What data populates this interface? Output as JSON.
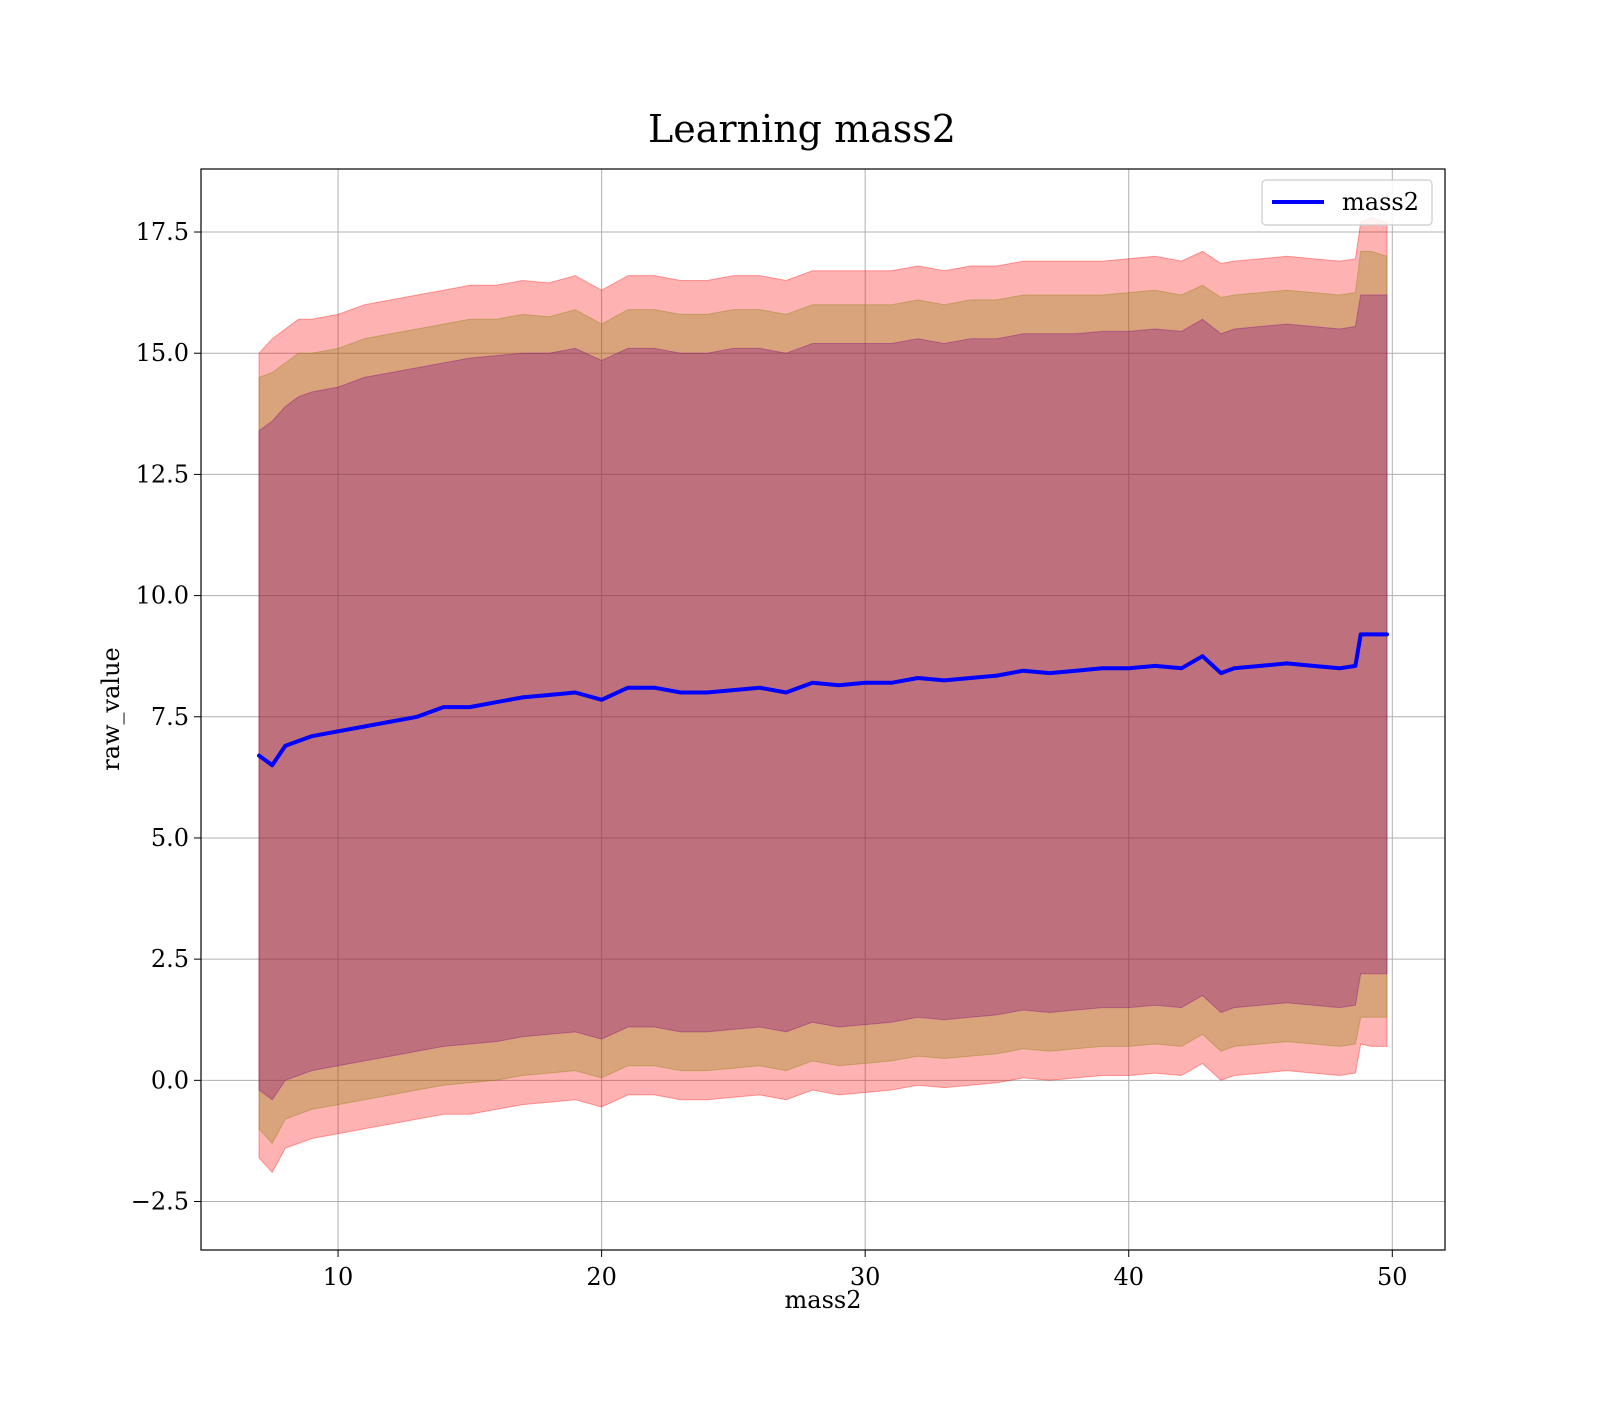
{
  "chart_data": {
    "type": "area",
    "title": "Learning mass2",
    "xlabel": "mass2",
    "ylabel": "raw_value",
    "xlim": [
      4.8,
      52.0
    ],
    "ylim": [
      -3.5,
      18.8
    ],
    "xticks": [
      10,
      20,
      30,
      40,
      50
    ],
    "xtick_labels": [
      "10",
      "20",
      "30",
      "40",
      "50"
    ],
    "yticks": [
      -2.5,
      0.0,
      2.5,
      5.0,
      7.5,
      10.0,
      12.5,
      15.0,
      17.5
    ],
    "ytick_labels": [
      "−2.5",
      "0.0",
      "2.5",
      "5.0",
      "7.5",
      "10.0",
      "12.5",
      "15.0",
      "17.5"
    ],
    "grid": true,
    "legend": {
      "placement": "top-right",
      "entries": [
        {
          "label": "mass2",
          "color": "#0000ff"
        }
      ]
    },
    "x": [
      7.0,
      7.5,
      8.0,
      8.5,
      9.0,
      10.0,
      11.0,
      12.0,
      13.0,
      14.0,
      15.0,
      16.0,
      17.0,
      18.0,
      19.0,
      20.0,
      21.0,
      22.0,
      23.0,
      24.0,
      25.0,
      26.0,
      27.0,
      28.0,
      29.0,
      30.0,
      31.0,
      32.0,
      33.0,
      34.0,
      35.0,
      36.0,
      37.0,
      38.0,
      39.0,
      40.0,
      41.0,
      42.0,
      42.8,
      43.5,
      44.0,
      45.0,
      46.0,
      47.0,
      48.0,
      48.6,
      48.8,
      49.2,
      49.8
    ],
    "series": [
      {
        "name": "mass2",
        "color": "#0000ff",
        "values": [
          6.7,
          6.5,
          6.9,
          7.0,
          7.1,
          7.2,
          7.3,
          7.4,
          7.5,
          7.7,
          7.7,
          7.8,
          7.9,
          7.95,
          8.0,
          7.85,
          8.1,
          8.1,
          8.0,
          8.0,
          8.05,
          8.1,
          8.0,
          8.2,
          8.15,
          8.2,
          8.2,
          8.3,
          8.25,
          8.3,
          8.35,
          8.45,
          8.4,
          8.45,
          8.5,
          8.5,
          8.55,
          8.5,
          8.75,
          8.4,
          8.5,
          8.55,
          8.6,
          8.55,
          8.5,
          8.55,
          9.2,
          9.2,
          9.2
        ]
      }
    ],
    "bands": [
      {
        "color": "#ff0000",
        "opacity": 0.3,
        "upper": [
          15.0,
          15.3,
          15.5,
          15.7,
          15.7,
          15.8,
          16.0,
          16.1,
          16.2,
          16.3,
          16.4,
          16.4,
          16.5,
          16.45,
          16.6,
          16.3,
          16.6,
          16.6,
          16.5,
          16.5,
          16.6,
          16.6,
          16.5,
          16.7,
          16.7,
          16.7,
          16.7,
          16.8,
          16.7,
          16.8,
          16.8,
          16.9,
          16.9,
          16.9,
          16.9,
          16.95,
          17.0,
          16.9,
          17.1,
          16.85,
          16.9,
          16.95,
          17.0,
          16.95,
          16.9,
          16.95,
          17.7,
          17.8,
          17.7
        ],
        "lower": [
          -1.6,
          -1.9,
          -1.4,
          -1.3,
          -1.2,
          -1.1,
          -1.0,
          -0.9,
          -0.8,
          -0.7,
          -0.7,
          -0.6,
          -0.5,
          -0.45,
          -0.4,
          -0.55,
          -0.3,
          -0.3,
          -0.4,
          -0.4,
          -0.35,
          -0.3,
          -0.4,
          -0.2,
          -0.3,
          -0.25,
          -0.2,
          -0.1,
          -0.15,
          -0.1,
          -0.05,
          0.05,
          0.0,
          0.05,
          0.1,
          0.1,
          0.15,
          0.1,
          0.35,
          0.0,
          0.1,
          0.15,
          0.2,
          0.15,
          0.1,
          0.15,
          0.75,
          0.7,
          0.7
        ]
      },
      {
        "color": "#808000",
        "opacity": 0.3,
        "upper": [
          14.5,
          14.6,
          14.8,
          15.0,
          15.0,
          15.1,
          15.3,
          15.4,
          15.5,
          15.6,
          15.7,
          15.7,
          15.8,
          15.75,
          15.9,
          15.6,
          15.9,
          15.9,
          15.8,
          15.8,
          15.9,
          15.9,
          15.8,
          16.0,
          16.0,
          16.0,
          16.0,
          16.1,
          16.0,
          16.1,
          16.1,
          16.2,
          16.2,
          16.2,
          16.2,
          16.25,
          16.3,
          16.2,
          16.4,
          16.15,
          16.2,
          16.25,
          16.3,
          16.25,
          16.2,
          16.25,
          17.1,
          17.1,
          17.0
        ],
        "lower": [
          -1.0,
          -1.3,
          -0.8,
          -0.7,
          -0.6,
          -0.5,
          -0.4,
          -0.3,
          -0.2,
          -0.1,
          -0.05,
          0.0,
          0.1,
          0.15,
          0.2,
          0.05,
          0.3,
          0.3,
          0.2,
          0.2,
          0.25,
          0.3,
          0.2,
          0.4,
          0.3,
          0.35,
          0.4,
          0.5,
          0.45,
          0.5,
          0.55,
          0.65,
          0.6,
          0.65,
          0.7,
          0.7,
          0.75,
          0.7,
          0.95,
          0.6,
          0.7,
          0.75,
          0.8,
          0.75,
          0.7,
          0.75,
          1.3,
          1.3,
          1.3
        ]
      },
      {
        "color": "#800080",
        "opacity": 0.3,
        "upper": [
          13.4,
          13.6,
          13.9,
          14.1,
          14.2,
          14.3,
          14.5,
          14.6,
          14.7,
          14.8,
          14.9,
          14.95,
          15.0,
          15.0,
          15.1,
          14.85,
          15.1,
          15.1,
          15.0,
          15.0,
          15.1,
          15.1,
          15.0,
          15.2,
          15.2,
          15.2,
          15.2,
          15.3,
          15.2,
          15.3,
          15.3,
          15.4,
          15.4,
          15.4,
          15.45,
          15.45,
          15.5,
          15.45,
          15.7,
          15.4,
          15.5,
          15.55,
          15.6,
          15.55,
          15.5,
          15.55,
          16.2,
          16.2,
          16.2
        ],
        "lower": [
          -0.2,
          -0.4,
          0.0,
          0.1,
          0.2,
          0.3,
          0.4,
          0.5,
          0.6,
          0.7,
          0.75,
          0.8,
          0.9,
          0.95,
          1.0,
          0.85,
          1.1,
          1.1,
          1.0,
          1.0,
          1.05,
          1.1,
          1.0,
          1.2,
          1.1,
          1.15,
          1.2,
          1.3,
          1.25,
          1.3,
          1.35,
          1.45,
          1.4,
          1.45,
          1.5,
          1.5,
          1.55,
          1.5,
          1.75,
          1.4,
          1.5,
          1.55,
          1.6,
          1.55,
          1.5,
          1.55,
          2.2,
          2.2,
          2.2
        ]
      }
    ]
  }
}
